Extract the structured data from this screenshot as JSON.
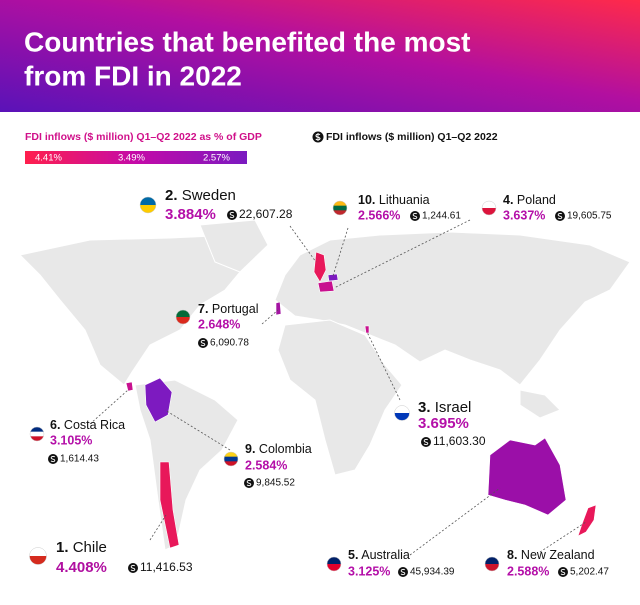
{
  "header": {
    "title_lines": [
      "Countries that benefited the most",
      "from FDI in 2022"
    ]
  },
  "legend": {
    "gdp_title": "FDI inflows ($ million) Q1–Q2 2022 as % of GDP",
    "gdp_labels": [
      "4.41%",
      "3.49%",
      "2.57%"
    ],
    "fdi_title": "FDI inflows ($ million) Q1–Q2 2022"
  },
  "countries": [
    {
      "rank": "2.",
      "name": "Sweden",
      "percent": "3.884%",
      "fdi": "22,607.28"
    },
    {
      "rank": "10.",
      "name": "Lithuania",
      "percent": "2.566%",
      "fdi": "1,244.61"
    },
    {
      "rank": "4.",
      "name": "Poland",
      "percent": "3.637%",
      "fdi": "19,605.75"
    },
    {
      "rank": "7.",
      "name": "Portugal",
      "percent": "2.648%",
      "fdi": "6,090.78"
    },
    {
      "rank": "3.",
      "name": "Israel",
      "percent": "3.695%",
      "fdi": "11,603.30"
    },
    {
      "rank": "6.",
      "name": "Costa Rica",
      "percent": "3.105%",
      "fdi": "1,614.43"
    },
    {
      "rank": "9.",
      "name": "Colombia",
      "percent": "2.584%",
      "fdi": "9,845.52"
    },
    {
      "rank": "1.",
      "name": "Chile",
      "percent": "4.408%",
      "fdi": "11,416.53"
    },
    {
      "rank": "5.",
      "name": "Australia",
      "percent": "3.125%",
      "fdi": "45,934.39"
    },
    {
      "rank": "8.",
      "name": "New Zealand",
      "percent": "2.588%",
      "fdi": "5,202.47"
    }
  ]
}
